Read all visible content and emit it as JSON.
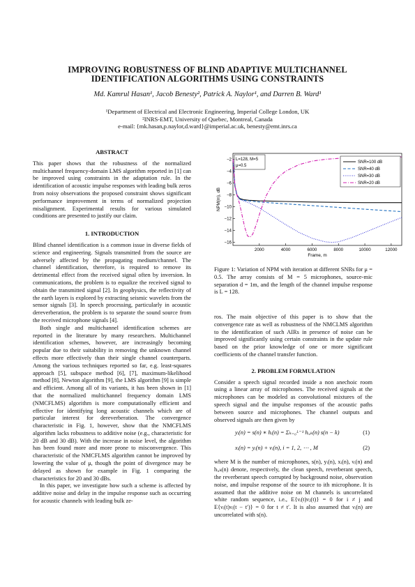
{
  "paper": {
    "title_line1": "IMPROVING ROBUSTNESS OF BLIND ADAPTIVE MULTICHANNEL",
    "title_line2": "IDENTIFICATION ALGORITHMS USING CONSTRAINTS",
    "authors": "Md. Kamrul Hasan¹, Jacob Benesty², Patrick A. Naylor¹, and Darren B. Ward¹",
    "affil1": "¹Department of Electrical and Electronic Engineering, Imperial College London, UK",
    "affil2": "²INRS-EMT, University of Quebec, Montreal, Canada",
    "email": "e-mail: {mk.hasan,p.naylor,d.ward}@imperial.ac.uk, benesty@emt.inrs.ca"
  },
  "abstract": {
    "heading": "ABSTRACT",
    "text": "This paper shows that the robustness of the normalized multichannel frequency-domain LMS algorithm reported in [1] can be improved using constraints in the adaptation rule. In the identification of acoustic impulse responses with leading bulk zeros from noisy observations the proposed constraint shows significant performance improvement in terms of normalized projection misalignment. Experimental results for various simulated conditions are presented to justify our claim."
  },
  "intro": {
    "heading": "1.   INTRODUCTION",
    "p1": "Blind channel identification is a common issue in diverse fields of science and engineering.  Signals transmitted from the source are adversely affected by the propagating medium/channel. The channel identification, therefore, is required to remove its detrimental effect from the received signal often by inversion. In communications, the problem is to equalize the received signal to obtain the transmitted signal [2]. In geophysics, the reflectivity of the earth layers is explored by extracting seismic wavelets from the sensor signals [3]. In speech processing, particularly in acoustic dereverberation, the problem is to separate the sound source from the received microphone signals [4].",
    "p2": "Both single and multichannel identification schemes are reported in the literature by many researchers.  Multichannel identification schemes, however, are increasingly becoming popular due to their suitability in removing the unknown channel effects more effectively than their single channel counterparts. Among the various techniques reported so far, e.g. least-squares approach [5], subspace method [6], [7], maximum-likelihood method [8], Newton algorithm [9], the LMS algorithm [9] is simple and efficient. Among all of its variants, it has been shown in [1] that the normalized multichannel frequency domain LMS (NMCFLMS) algorithm is more computationally efficient and effective for identifying long acoustic channels which are of particular interest for dereverberation. The convergence characteristic in Fig. 1, however, show that the NMCFLMS algorithm lacks robustness to additive noise (e.g., characteristic for 20 dB and 30 dB). With the increase in noise level, the algorithm has been found more and more prone to misconvergence. This characteristic of the NMCFLMS algorithm cannot be improved by lowering the value of μ, though the point of divergence may be delayed as shown for example in Fig. 1 comparing the characteristics for 20 and 30 dBs.",
    "p3": "In this paper, we investigate how such a scheme is affected by additive noise and delay in the impulse response such as occurring for acoustic channels with leading bulk ze-"
  },
  "figure": {
    "caption": "Figure 1: Variation of NPM with iteration at different SNRs for μ = 0.5.  The array consists of M = 5 microphones, source-mic separation d = 1m, and the length of the channel impulse response is L = 128."
  },
  "chart_data": {
    "type": "line",
    "xlabel": "Frame, m",
    "ylabel": "NPM(m), dB",
    "xlim": [
      0,
      12800
    ],
    "ylim": [
      -16.5,
      -1
    ],
    "xticks": [
      2000,
      4000,
      6000,
      8000,
      10000,
      12000
    ],
    "yticks": [
      -2,
      -4,
      -6,
      -8,
      -10,
      -12,
      -14,
      -16
    ],
    "annotation_line1": "L=128, M=5",
    "annotation_line2": "μ=0.5",
    "legend_position": "top-right",
    "grid": false,
    "series": [
      {
        "name": "SNR=100 dB",
        "color": "#111111",
        "style": "solid",
        "x": [
          0,
          150,
          300,
          500,
          800,
          1200,
          2000,
          4000,
          6000,
          8000,
          10000,
          12000,
          12800
        ],
        "y": [
          -2,
          -6.5,
          -8,
          -8.6,
          -8.8,
          -8.9,
          -9.0,
          -9.1,
          -9.2,
          -9.25,
          -9.3,
          -9.3,
          -9.3
        ]
      },
      {
        "name": "SNR=40 dB",
        "color": "#1f6fbf",
        "style": "dashed",
        "x": [
          0,
          150,
          300,
          500,
          800,
          1200,
          2000,
          4000,
          6000,
          8000,
          10000,
          12000,
          12800
        ],
        "y": [
          -2,
          -6.5,
          -8,
          -8.7,
          -8.9,
          -9.0,
          -9.2,
          -9.5,
          -9.8,
          -10.1,
          -10.4,
          -10.7,
          -10.8
        ]
      },
      {
        "name": "SNR=30 dB",
        "color": "#3a3ad8",
        "style": "dotted",
        "x": [
          0,
          150,
          300,
          500,
          800,
          1200,
          2000,
          3000,
          4000,
          5000,
          6000,
          7000,
          7500,
          8000,
          9000,
          10000,
          11000,
          12000,
          12800
        ],
        "y": [
          -2,
          -6.5,
          -8,
          -8.7,
          -9.0,
          -9.3,
          -10.2,
          -11.6,
          -13.0,
          -14.3,
          -15.3,
          -15.9,
          -16.0,
          -15.9,
          -15.2,
          -14.3,
          -13.4,
          -12.5,
          -11.8
        ]
      },
      {
        "name": "SNR=20 dB",
        "color": "#d21fb0",
        "style": "dashdot",
        "x": [
          0,
          150,
          300,
          500,
          700,
          900,
          1100,
          1300,
          1500,
          1800,
          2100,
          2500,
          3000,
          3500,
          4000,
          5000,
          6000,
          7000,
          8000,
          9000,
          10000,
          11000,
          12000,
          12800
        ],
        "y": [
          -2,
          -6.5,
          -8,
          -9.5,
          -11.5,
          -13.5,
          -14.9,
          -15.1,
          -14.6,
          -12.8,
          -10.6,
          -8.2,
          -6.2,
          -4.9,
          -4.0,
          -2.9,
          -2.3,
          -2.0,
          -1.85,
          -1.75,
          -1.7,
          -1.65,
          -1.6,
          -1.6
        ]
      }
    ]
  },
  "right": {
    "p1": "ros. The main objective of this paper is to show that the convergence rate as well as robustness of the NMCLMS algorithm to the identification of such AIRs in presence of noise can be improved significantly using certain constraints in the update rule based on the prior knowledge of one or more significant coefficients of the channel transfer function.",
    "heading2": "2.   PROBLEM FORMULATION",
    "p2": "Consider a speech signal recorded inside a non anechoic room using a linear array of microphones. The received signals at the microphones can be modeled as convolutional mixtures of the speech signal and the impulse responses of the acoustic paths between source and microphones.  The channel outputs and observed signals are then given by",
    "eq1": "yᵢ(n)   =   s(n) ∗ hᵢ(n) = Σₖ₌₀ᴸ⁻¹ hᵢ,ₖ(n) s(n − k)",
    "eq1_num": "(1)",
    "eq2": "xᵢ(n)   =   yᵢ(n) + νᵢ(n),   i = 1, 2, ⋯ , M",
    "eq2_num": "(2)",
    "p3": "where M is the number of microphones, s(n), yᵢ(n), xᵢ(n), νᵢ(n) and hᵢ,ₖ(n) denote, respectively, the clean speech, reverberant speech, the reverberant speech corrupted by background noise, observation noise, and impulse response of the source to ith microphone.  It is assumed that the additive noise on M channels is uncorrelated white random sequence, i.e., E{νᵢ(t)νⱼ(t)} = 0 for i ≠ j and E{νᵢ(t)νᵢ(t − t′)} = 0 for t ≠ t′. It is also assumed that νᵢ(n) are uncorrelated with s(n)."
  }
}
